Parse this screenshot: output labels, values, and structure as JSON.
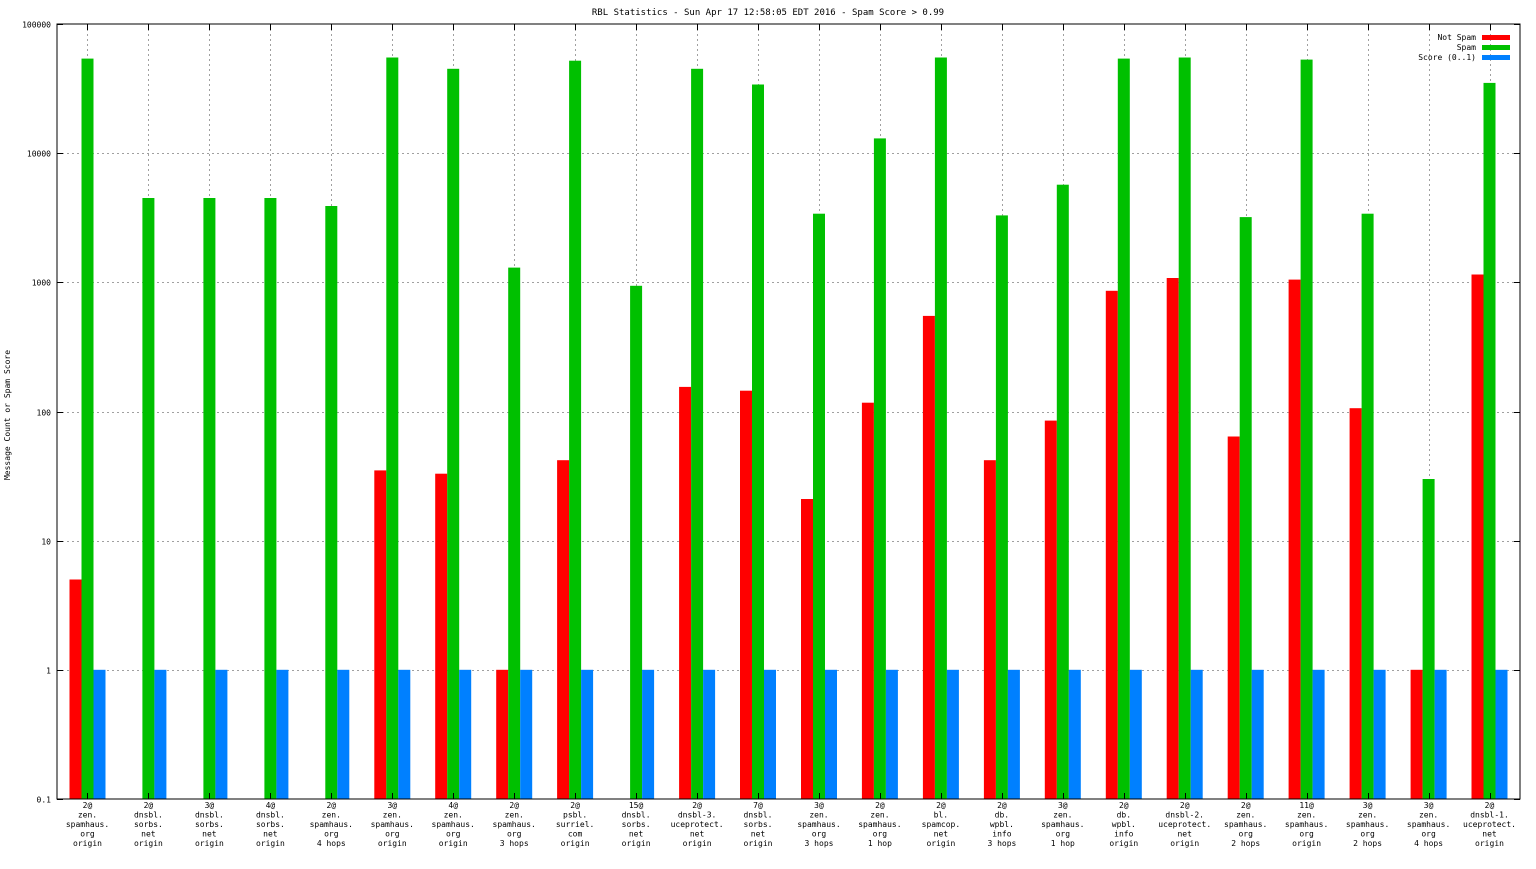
{
  "chart_data": {
    "type": "bar",
    "title": "RBL Statistics - Sun Apr 17 12:58:05 EDT 2016 - Spam Score > 0.99",
    "ylabel": "Message Count or Spam Score",
    "xlabel": "",
    "yscale": "log",
    "ylim": [
      0.1,
      100000
    ],
    "yticks": [
      "0.1",
      "1",
      "10",
      "100",
      "1000",
      "10000",
      "100000"
    ],
    "grid": true,
    "legend_position": "top-right",
    "categories": [
      "2@\nzen.\nspamhaus.\norg\norigin",
      "2@\ndnsbl.\nsorbs.\nnet\norigin",
      "3@\ndnsbl.\nsorbs.\nnet\norigin",
      "4@\ndnsbl.\nsorbs.\nnet\norigin",
      "2@\nzen.\nspamhaus.\norg\n4 hops",
      "3@\nzen.\nspamhaus.\norg\norigin",
      "4@\nzen.\nspamhaus.\norg\norigin",
      "2@\nzen.\nspamhaus.\norg\n3 hops",
      "2@\npsbl.\nsurriel.\ncom\norigin",
      "15@\ndnsbl.\nsorbs.\nnet\norigin",
      "2@\ndnsbl-3.\nuceprotect.\nnet\norigin",
      "7@\ndnsbl.\nsorbs.\nnet\norigin",
      "3@\nzen.\nspamhaus.\norg\n3 hops",
      "2@\nzen.\nspamhaus.\norg\n1 hop",
      "2@\nbl.\nspamcop.\nnet\norigin",
      "2@\ndb.\nwpbl.\ninfo\n3 hops",
      "3@\nzen.\nspamhaus.\norg\n1 hop",
      "2@\ndb.\nwpbl.\ninfo\norigin",
      "2@\ndnsbl-2.\nuceprotect.\nnet\norigin",
      "2@\nzen.\nspamhaus.\norg\n2 hops",
      "11@\nzen.\nspamhaus.\norg\norigin",
      "3@\nzen.\nspamhaus.\norg\n2 hops",
      "3@\nzen.\nspamhaus.\norg\n4 hops",
      "2@\ndnsbl-1.\nuceprotect.\nnet\norigin"
    ],
    "series": [
      {
        "name": "Not Spam",
        "color": "#ff0000",
        "values": [
          5,
          null,
          null,
          null,
          null,
          35,
          33,
          1,
          42,
          null,
          155,
          145,
          21,
          117,
          550,
          42,
          85,
          860,
          1080,
          64,
          1050,
          106,
          1,
          1150
        ]
      },
      {
        "name": "Spam",
        "color": "#00c000",
        "values": [
          54000,
          4500,
          4500,
          4500,
          3900,
          55000,
          45000,
          1300,
          52000,
          940,
          45000,
          34000,
          3400,
          13000,
          55000,
          3300,
          5700,
          54000,
          55000,
          3200,
          53000,
          3400,
          30,
          35000
        ]
      },
      {
        "name": "Score (0..1)",
        "color": "#0080ff",
        "values": [
          1,
          1,
          1,
          1,
          1,
          1,
          1,
          1,
          1,
          1,
          1,
          1,
          1,
          1,
          1,
          1,
          1,
          1,
          1,
          1,
          1,
          1,
          1,
          1
        ]
      }
    ]
  }
}
